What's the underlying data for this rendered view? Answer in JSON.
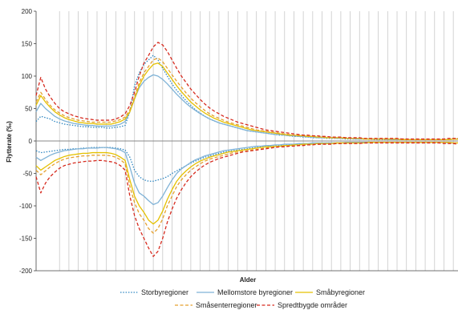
{
  "chart_data": {
    "type": "line",
    "title": "",
    "xlabel": "Alder",
    "ylabel": "Flytterate (‰)",
    "ylim": [
      -200,
      200
    ],
    "yticks": [
      200,
      150,
      100,
      50,
      0,
      -50,
      -100,
      -150,
      -200
    ],
    "xlim": [
      0,
      90
    ],
    "grid": "vertical",
    "legend_position": "bottom",
    "series": [
      {
        "name": "Storbyregioner",
        "color": "#2E86C1",
        "style": "dotted",
        "in_values": [
          30,
          38,
          36,
          34,
          30,
          28,
          26,
          25,
          24,
          23,
          22,
          22,
          21,
          21,
          21,
          20,
          20,
          21,
          22,
          24,
          45,
          85,
          105,
          118,
          125,
          132,
          125,
          112,
          100,
          88,
          78,
          70,
          62,
          55,
          48,
          43,
          38,
          34,
          31,
          28,
          26,
          24,
          22,
          20,
          18,
          16,
          15,
          14,
          13,
          12,
          11,
          10,
          9,
          9,
          8,
          7,
          7,
          6,
          6,
          5,
          5,
          5,
          4,
          4,
          4,
          4,
          3,
          3,
          3,
          3,
          3,
          3,
          2,
          2,
          2,
          2,
          2,
          2,
          2,
          2,
          2,
          2,
          2,
          2,
          2,
          2,
          2,
          2,
          2,
          3,
          3
        ],
        "out_values": [
          -15,
          -18,
          -17,
          -16,
          -15,
          -14,
          -13,
          -13,
          -12,
          -12,
          -11,
          -11,
          -10,
          -10,
          -10,
          -10,
          -10,
          -11,
          -12,
          -14,
          -25,
          -45,
          -55,
          -60,
          -62,
          -62,
          -60,
          -58,
          -55,
          -50,
          -46,
          -42,
          -38,
          -34,
          -31,
          -28,
          -25,
          -23,
          -21,
          -19,
          -17,
          -16,
          -15,
          -14,
          -13,
          -12,
          -11,
          -10,
          -9,
          -9,
          -8,
          -8,
          -7,
          -7,
          -6,
          -6,
          -5,
          -5,
          -5,
          -4,
          -4,
          -4,
          -3,
          -3,
          -3,
          -3,
          -3,
          -2,
          -2,
          -2,
          -2,
          -2,
          -2,
          -2,
          -2,
          -2,
          -2,
          -2,
          -2,
          -2,
          -2,
          -2,
          -2,
          -2,
          -2,
          -2,
          -2,
          -2,
          -2,
          -3,
          -3
        ]
      },
      {
        "name": "Mellomstore byregioner",
        "color": "#7FB2D6",
        "style": "solid",
        "in_values": [
          45,
          58,
          50,
          44,
          38,
          34,
          31,
          29,
          27,
          26,
          25,
          24,
          24,
          23,
          23,
          23,
          23,
          24,
          26,
          30,
          45,
          65,
          82,
          92,
          98,
          102,
          100,
          95,
          88,
          80,
          72,
          65,
          58,
          52,
          47,
          42,
          38,
          34,
          31,
          28,
          26,
          24,
          22,
          20,
          18,
          16,
          15,
          14,
          13,
          12,
          11,
          10,
          10,
          9,
          8,
          8,
          7,
          7,
          6,
          6,
          5,
          5,
          5,
          5,
          4,
          4,
          4,
          4,
          3,
          3,
          3,
          3,
          3,
          3,
          3,
          2,
          2,
          2,
          2,
          2,
          2,
          2,
          2,
          2,
          2,
          2,
          2,
          2,
          2,
          3,
          3
        ],
        "out_values": [
          -25,
          -30,
          -26,
          -22,
          -19,
          -17,
          -15,
          -14,
          -13,
          -12,
          -12,
          -11,
          -11,
          -11,
          -10,
          -10,
          -11,
          -12,
          -14,
          -18,
          -40,
          -65,
          -80,
          -85,
          -92,
          -98,
          -95,
          -85,
          -72,
          -60,
          -50,
          -43,
          -38,
          -33,
          -29,
          -26,
          -23,
          -21,
          -19,
          -17,
          -15,
          -14,
          -13,
          -12,
          -11,
          -10,
          -9,
          -8,
          -8,
          -7,
          -7,
          -6,
          -6,
          -5,
          -5,
          -5,
          -4,
          -4,
          -4,
          -3,
          -3,
          -3,
          -3,
          -3,
          -3,
          -3,
          -2,
          -2,
          -2,
          -2,
          -2,
          -2,
          -2,
          -2,
          -2,
          -2,
          -2,
          -2,
          -2,
          -2,
          -2,
          -2,
          -2,
          -2,
          -2,
          -2,
          -2,
          -2,
          -3,
          -3
        ]
      },
      {
        "name": "Småbyregioner",
        "color": "#E5C100",
        "style": "solid",
        "in_values": [
          55,
          70,
          60,
          52,
          45,
          40,
          36,
          33,
          31,
          29,
          28,
          27,
          27,
          26,
          26,
          26,
          26,
          28,
          30,
          34,
          45,
          65,
          85,
          100,
          110,
          118,
          120,
          115,
          105,
          95,
          85,
          76,
          68,
          60,
          54,
          48,
          43,
          39,
          35,
          32,
          29,
          27,
          25,
          23,
          21,
          19,
          17,
          16,
          15,
          14,
          13,
          12,
          11,
          10,
          9,
          9,
          8,
          8,
          7,
          7,
          6,
          6,
          5,
          5,
          5,
          5,
          4,
          4,
          4,
          4,
          3,
          3,
          3,
          3,
          3,
          3,
          3,
          3,
          2,
          2,
          2,
          2,
          2,
          2,
          2,
          2,
          2,
          2,
          2,
          3,
          3
        ],
        "out_values": [
          -38,
          -45,
          -40,
          -35,
          -30,
          -27,
          -24,
          -22,
          -21,
          -20,
          -19,
          -19,
          -18,
          -18,
          -18,
          -18,
          -19,
          -21,
          -25,
          -30,
          -60,
          -85,
          -100,
          -110,
          -122,
          -128,
          -122,
          -108,
          -90,
          -75,
          -62,
          -53,
          -46,
          -40,
          -35,
          -31,
          -28,
          -25,
          -23,
          -21,
          -19,
          -17,
          -16,
          -15,
          -14,
          -13,
          -12,
          -11,
          -10,
          -9,
          -9,
          -8,
          -8,
          -7,
          -7,
          -6,
          -6,
          -5,
          -5,
          -5,
          -4,
          -4,
          -4,
          -4,
          -3,
          -3,
          -3,
          -3,
          -3,
          -3,
          -3,
          -2,
          -2,
          -2,
          -2,
          -2,
          -2,
          -2,
          -2,
          -2,
          -2,
          -2,
          -2,
          -2,
          -2,
          -2,
          -2,
          -2,
          -2,
          -3,
          -3
        ]
      },
      {
        "name": "Småsenterregioner",
        "color": "#E5A02F",
        "style": "dashed",
        "in_values": [
          60,
          75,
          64,
          55,
          48,
          43,
          39,
          36,
          34,
          32,
          31,
          30,
          29,
          29,
          29,
          29,
          29,
          31,
          33,
          37,
          48,
          68,
          90,
          105,
          115,
          125,
          128,
          122,
          112,
          102,
          92,
          83,
          74,
          66,
          59,
          53,
          47,
          42,
          38,
          35,
          32,
          29,
          27,
          25,
          23,
          21,
          19,
          17,
          16,
          15,
          14,
          13,
          12,
          11,
          10,
          9,
          9,
          8,
          8,
          7,
          7,
          6,
          6,
          5,
          5,
          5,
          5,
          4,
          4,
          4,
          4,
          3,
          3,
          3,
          3,
          3,
          3,
          3,
          3,
          3,
          2,
          2,
          2,
          2,
          2,
          2,
          2,
          2,
          3,
          3,
          3
        ],
        "out_values": [
          -45,
          -52,
          -46,
          -40,
          -35,
          -31,
          -28,
          -26,
          -25,
          -24,
          -23,
          -23,
          -22,
          -22,
          -22,
          -22,
          -23,
          -25,
          -29,
          -35,
          -70,
          -95,
          -112,
          -122,
          -135,
          -142,
          -135,
          -120,
          -100,
          -85,
          -70,
          -60,
          -52,
          -45,
          -40,
          -35,
          -31,
          -28,
          -26,
          -24,
          -22,
          -20,
          -18,
          -17,
          -16,
          -15,
          -14,
          -13,
          -12,
          -11,
          -10,
          -9,
          -9,
          -8,
          -8,
          -7,
          -7,
          -6,
          -6,
          -5,
          -5,
          -5,
          -4,
          -4,
          -4,
          -4,
          -3,
          -3,
          -3,
          -3,
          -3,
          -3,
          -3,
          -2,
          -2,
          -2,
          -2,
          -2,
          -2,
          -2,
          -2,
          -2,
          -2,
          -2,
          -2,
          -2,
          -2,
          -2,
          -3,
          -3,
          -3
        ]
      },
      {
        "name": "Spredtbygde områder",
        "color": "#D62B1F",
        "style": "dashed",
        "in_values": [
          70,
          98,
          80,
          68,
          58,
          50,
          45,
          42,
          39,
          37,
          35,
          34,
          33,
          32,
          32,
          32,
          32,
          34,
          37,
          42,
          55,
          75,
          100,
          120,
          132,
          145,
          152,
          148,
          138,
          125,
          112,
          100,
          90,
          80,
          72,
          64,
          57,
          51,
          46,
          42,
          38,
          35,
          32,
          29,
          27,
          25,
          23,
          21,
          19,
          17,
          16,
          15,
          14,
          13,
          12,
          11,
          10,
          9,
          9,
          8,
          8,
          7,
          7,
          6,
          6,
          6,
          5,
          5,
          5,
          5,
          4,
          4,
          4,
          4,
          4,
          4,
          4,
          4,
          3,
          3,
          3,
          3,
          3,
          3,
          3,
          3,
          3,
          3,
          4,
          4,
          4
        ],
        "out_values": [
          -55,
          -80,
          -65,
          -55,
          -48,
          -42,
          -38,
          -36,
          -34,
          -33,
          -32,
          -31,
          -31,
          -30,
          -30,
          -31,
          -32,
          -34,
          -38,
          -45,
          -85,
          -115,
          -135,
          -150,
          -165,
          -178,
          -170,
          -150,
          -125,
          -105,
          -88,
          -75,
          -64,
          -55,
          -48,
          -42,
          -37,
          -33,
          -30,
          -27,
          -25,
          -23,
          -21,
          -19,
          -17,
          -16,
          -15,
          -14,
          -13,
          -12,
          -11,
          -10,
          -9,
          -9,
          -8,
          -8,
          -7,
          -7,
          -6,
          -6,
          -5,
          -5,
          -5,
          -5,
          -4,
          -4,
          -4,
          -4,
          -4,
          -4,
          -3,
          -3,
          -3,
          -3,
          -3,
          -3,
          -3,
          -3,
          -3,
          -3,
          -3,
          -3,
          -3,
          -3,
          -3,
          -3,
          -3,
          -4,
          -4,
          -4,
          -5
        ]
      }
    ]
  }
}
